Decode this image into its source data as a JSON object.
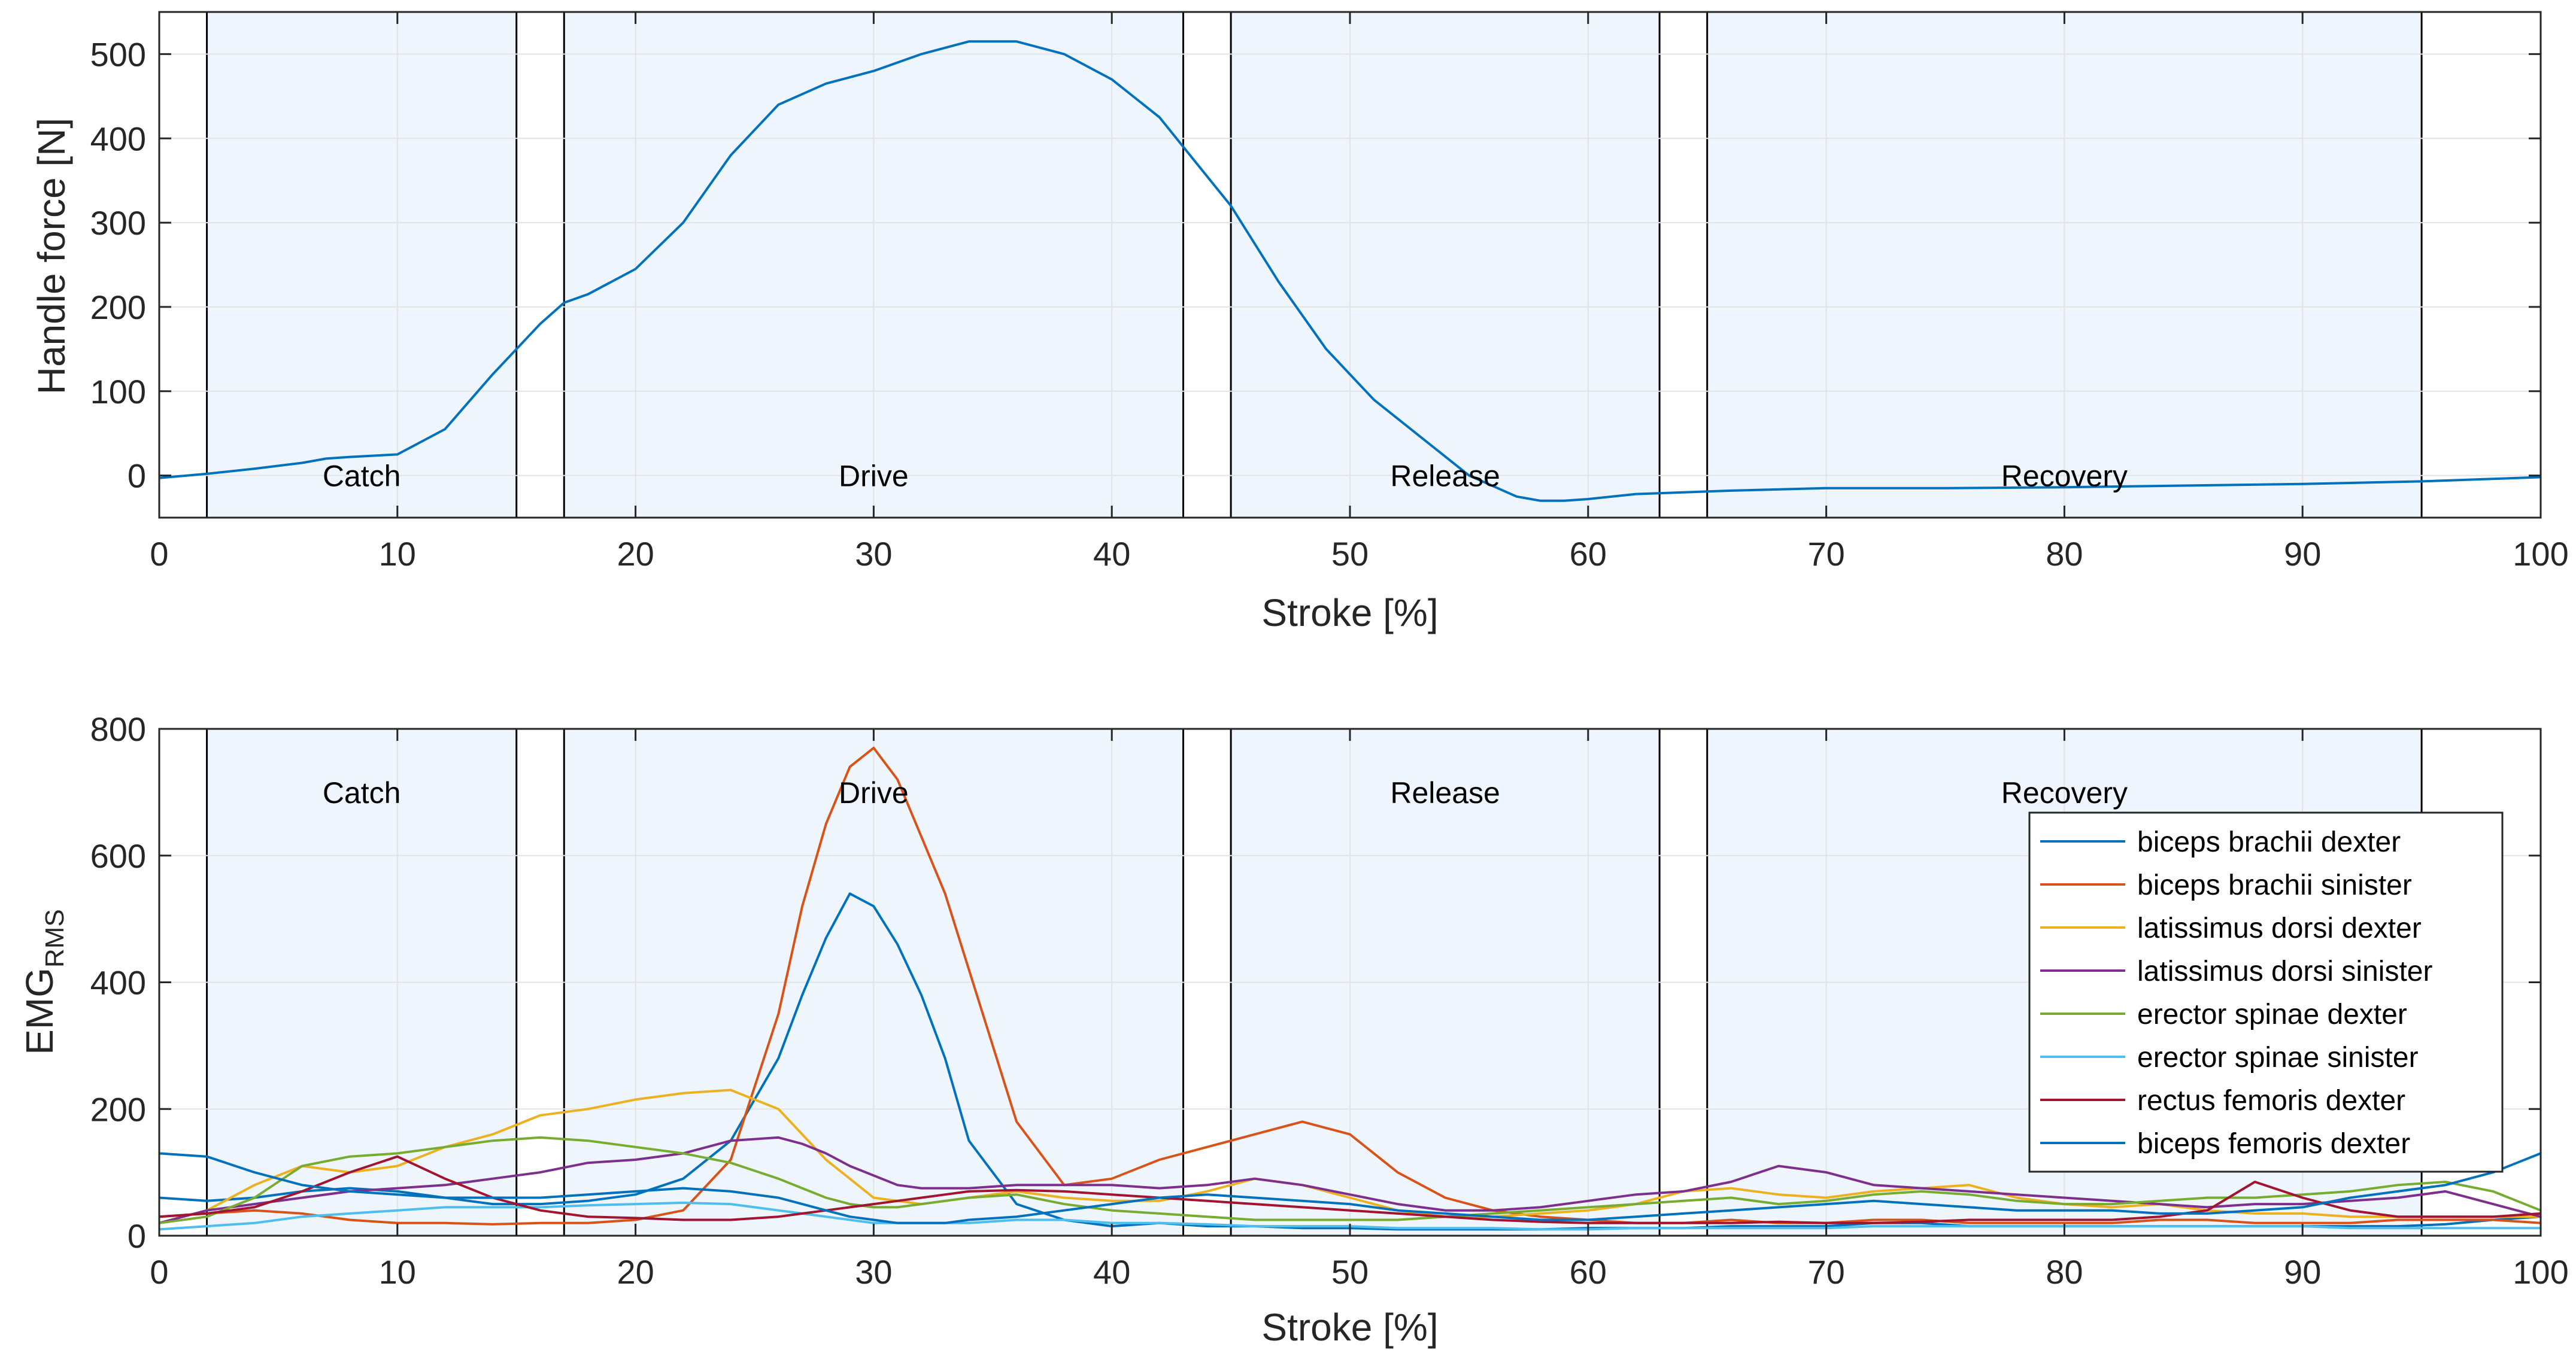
{
  "chart_data": [
    {
      "type": "line",
      "xlabel": "Stroke [%]",
      "ylabel": "Handle force [N]",
      "xlim": [
        0,
        100
      ],
      "ylim": [
        -50,
        550
      ],
      "xticks": [
        0,
        10,
        20,
        30,
        40,
        50,
        60,
        70,
        80,
        90,
        100
      ],
      "yticks": [
        0,
        100,
        200,
        300,
        400,
        500
      ],
      "grid": true,
      "phases": [
        {
          "label": "Catch",
          "start": 2,
          "end": 15
        },
        {
          "label": "Drive",
          "start": 17,
          "end": 43
        },
        {
          "label": "Release",
          "start": 45,
          "end": 63
        },
        {
          "label": "Recovery",
          "start": 65,
          "end": 95
        }
      ],
      "phase_label_y": 0,
      "series": [
        {
          "color": "#0072BD",
          "x": [
            0,
            2,
            4,
            6,
            7,
            8,
            10,
            12,
            14,
            16,
            17,
            18,
            20,
            22,
            24,
            26,
            28,
            30,
            32,
            34,
            36,
            38,
            40,
            42,
            43,
            45,
            47,
            49,
            51,
            53,
            55,
            57,
            58,
            59,
            60,
            62,
            64,
            66,
            70,
            75,
            80,
            85,
            90,
            95,
            100
          ],
          "y": [
            -3,
            2,
            8,
            15,
            20,
            22,
            25,
            55,
            120,
            180,
            205,
            215,
            245,
            300,
            380,
            440,
            465,
            480,
            500,
            515,
            515,
            500,
            470,
            425,
            390,
            320,
            230,
            150,
            90,
            45,
            0,
            -25,
            -30,
            -30,
            -28,
            -22,
            -20,
            -18,
            -15,
            -15,
            -14,
            -12,
            -10,
            -7,
            -2
          ]
        }
      ]
    },
    {
      "type": "line",
      "xlabel": "Stroke [%]",
      "ylabel": "EMG",
      "ylabel_sub": "RMS",
      "xlim": [
        0,
        100
      ],
      "ylim": [
        0,
        800
      ],
      "xticks": [
        0,
        10,
        20,
        30,
        40,
        50,
        60,
        70,
        80,
        90,
        100
      ],
      "yticks": [
        0,
        200,
        400,
        600,
        800
      ],
      "grid": true,
      "legend_position": "right",
      "phases": [
        {
          "label": "Catch",
          "start": 2,
          "end": 15
        },
        {
          "label": "Drive",
          "start": 17,
          "end": 43
        },
        {
          "label": "Release",
          "start": 45,
          "end": 63
        },
        {
          "label": "Recovery",
          "start": 65,
          "end": 95
        }
      ],
      "phase_label_y": 700,
      "x": [
        0,
        2,
        4,
        6,
        8,
        10,
        12,
        14,
        16,
        18,
        20,
        22,
        24,
        26,
        27,
        28,
        29,
        30,
        31,
        32,
        33,
        34,
        36,
        38,
        40,
        42,
        44,
        46,
        48,
        50,
        52,
        54,
        56,
        58,
        60,
        62,
        64,
        66,
        68,
        70,
        72,
        74,
        76,
        78,
        80,
        82,
        84,
        86,
        88,
        90,
        92,
        94,
        96,
        98,
        100
      ],
      "series": [
        {
          "name": "biceps brachii dexter",
          "color": "#0072BD",
          "values": [
            60,
            55,
            60,
            70,
            75,
            70,
            60,
            50,
            50,
            55,
            65,
            90,
            150,
            280,
            380,
            470,
            540,
            520,
            460,
            380,
            280,
            150,
            50,
            25,
            15,
            20,
            15,
            15,
            12,
            12,
            10,
            10,
            10,
            10,
            12,
            12,
            12,
            15,
            15,
            15,
            20,
            20,
            15,
            15,
            15,
            15,
            15,
            15,
            15,
            15,
            15,
            15,
            18,
            25,
            30
          ]
        },
        {
          "name": "biceps brachii sinister",
          "color": "#D95319",
          "values": [
            30,
            35,
            40,
            35,
            25,
            20,
            20,
            18,
            20,
            20,
            25,
            40,
            120,
            350,
            520,
            650,
            740,
            770,
            720,
            630,
            540,
            420,
            180,
            80,
            90,
            120,
            140,
            160,
            180,
            160,
            100,
            60,
            40,
            30,
            25,
            20,
            20,
            25,
            20,
            20,
            25,
            25,
            20,
            20,
            20,
            20,
            25,
            25,
            20,
            20,
            20,
            25,
            25,
            25,
            20
          ]
        },
        {
          "name": "latissimus dorsi dexter",
          "color": "#EDB120",
          "values": [
            20,
            40,
            80,
            110,
            100,
            110,
            140,
            160,
            190,
            200,
            215,
            225,
            230,
            200,
            160,
            120,
            90,
            60,
            55,
            50,
            55,
            60,
            70,
            60,
            55,
            55,
            70,
            90,
            80,
            60,
            40,
            30,
            30,
            35,
            40,
            50,
            70,
            75,
            65,
            60,
            70,
            75,
            80,
            60,
            50,
            45,
            50,
            40,
            35,
            35,
            30,
            30,
            30,
            30,
            30
          ]
        },
        {
          "name": "latissimus dorsi sinister",
          "color": "#7E2F8E",
          "values": [
            20,
            40,
            50,
            60,
            70,
            75,
            80,
            90,
            100,
            115,
            120,
            130,
            150,
            155,
            145,
            130,
            110,
            95,
            80,
            75,
            75,
            75,
            80,
            80,
            80,
            75,
            80,
            90,
            80,
            65,
            50,
            40,
            40,
            45,
            55,
            65,
            70,
            85,
            110,
            100,
            80,
            75,
            70,
            65,
            60,
            55,
            50,
            45,
            50,
            50,
            55,
            60,
            70,
            50,
            30
          ]
        },
        {
          "name": "erector spinae dexter",
          "color": "#77AC30",
          "values": [
            20,
            30,
            60,
            110,
            125,
            130,
            140,
            150,
            155,
            150,
            140,
            130,
            115,
            90,
            75,
            60,
            50,
            45,
            45,
            50,
            55,
            60,
            65,
            50,
            40,
            35,
            30,
            25,
            25,
            25,
            25,
            30,
            35,
            40,
            45,
            50,
            55,
            60,
            50,
            55,
            65,
            70,
            65,
            55,
            50,
            50,
            55,
            60,
            60,
            65,
            70,
            80,
            85,
            70,
            40
          ]
        },
        {
          "name": "erector spinae sinister",
          "color": "#4DBEEE",
          "values": [
            10,
            15,
            20,
            30,
            35,
            40,
            45,
            45,
            45,
            48,
            50,
            52,
            50,
            40,
            35,
            30,
            25,
            20,
            20,
            20,
            20,
            20,
            25,
            25,
            20,
            20,
            18,
            15,
            15,
            15,
            12,
            12,
            12,
            10,
            10,
            12,
            12,
            12,
            12,
            12,
            15,
            15,
            15,
            15,
            15,
            15,
            15,
            15,
            15,
            15,
            12,
            12,
            12,
            12,
            12
          ]
        },
        {
          "name": "rectus femoris dexter",
          "color": "#A2142F",
          "values": [
            30,
            35,
            45,
            70,
            100,
            125,
            90,
            60,
            40,
            30,
            28,
            25,
            25,
            30,
            35,
            40,
            45,
            50,
            55,
            60,
            65,
            70,
            72,
            70,
            65,
            60,
            55,
            50,
            45,
            40,
            35,
            30,
            25,
            22,
            20,
            20,
            20,
            20,
            22,
            20,
            20,
            22,
            25,
            25,
            25,
            25,
            30,
            40,
            85,
            60,
            40,
            30,
            30,
            30,
            35
          ]
        },
        {
          "name": "biceps femoris dexter",
          "color": "#0072BD",
          "values": [
            130,
            125,
            100,
            80,
            70,
            65,
            60,
            60,
            60,
            65,
            70,
            75,
            70,
            60,
            50,
            40,
            30,
            25,
            20,
            20,
            20,
            25,
            30,
            40,
            50,
            60,
            65,
            60,
            55,
            50,
            40,
            35,
            30,
            25,
            25,
            30,
            35,
            40,
            45,
            50,
            55,
            50,
            45,
            40,
            40,
            40,
            35,
            35,
            40,
            45,
            60,
            70,
            80,
            100,
            130
          ]
        }
      ]
    }
  ]
}
